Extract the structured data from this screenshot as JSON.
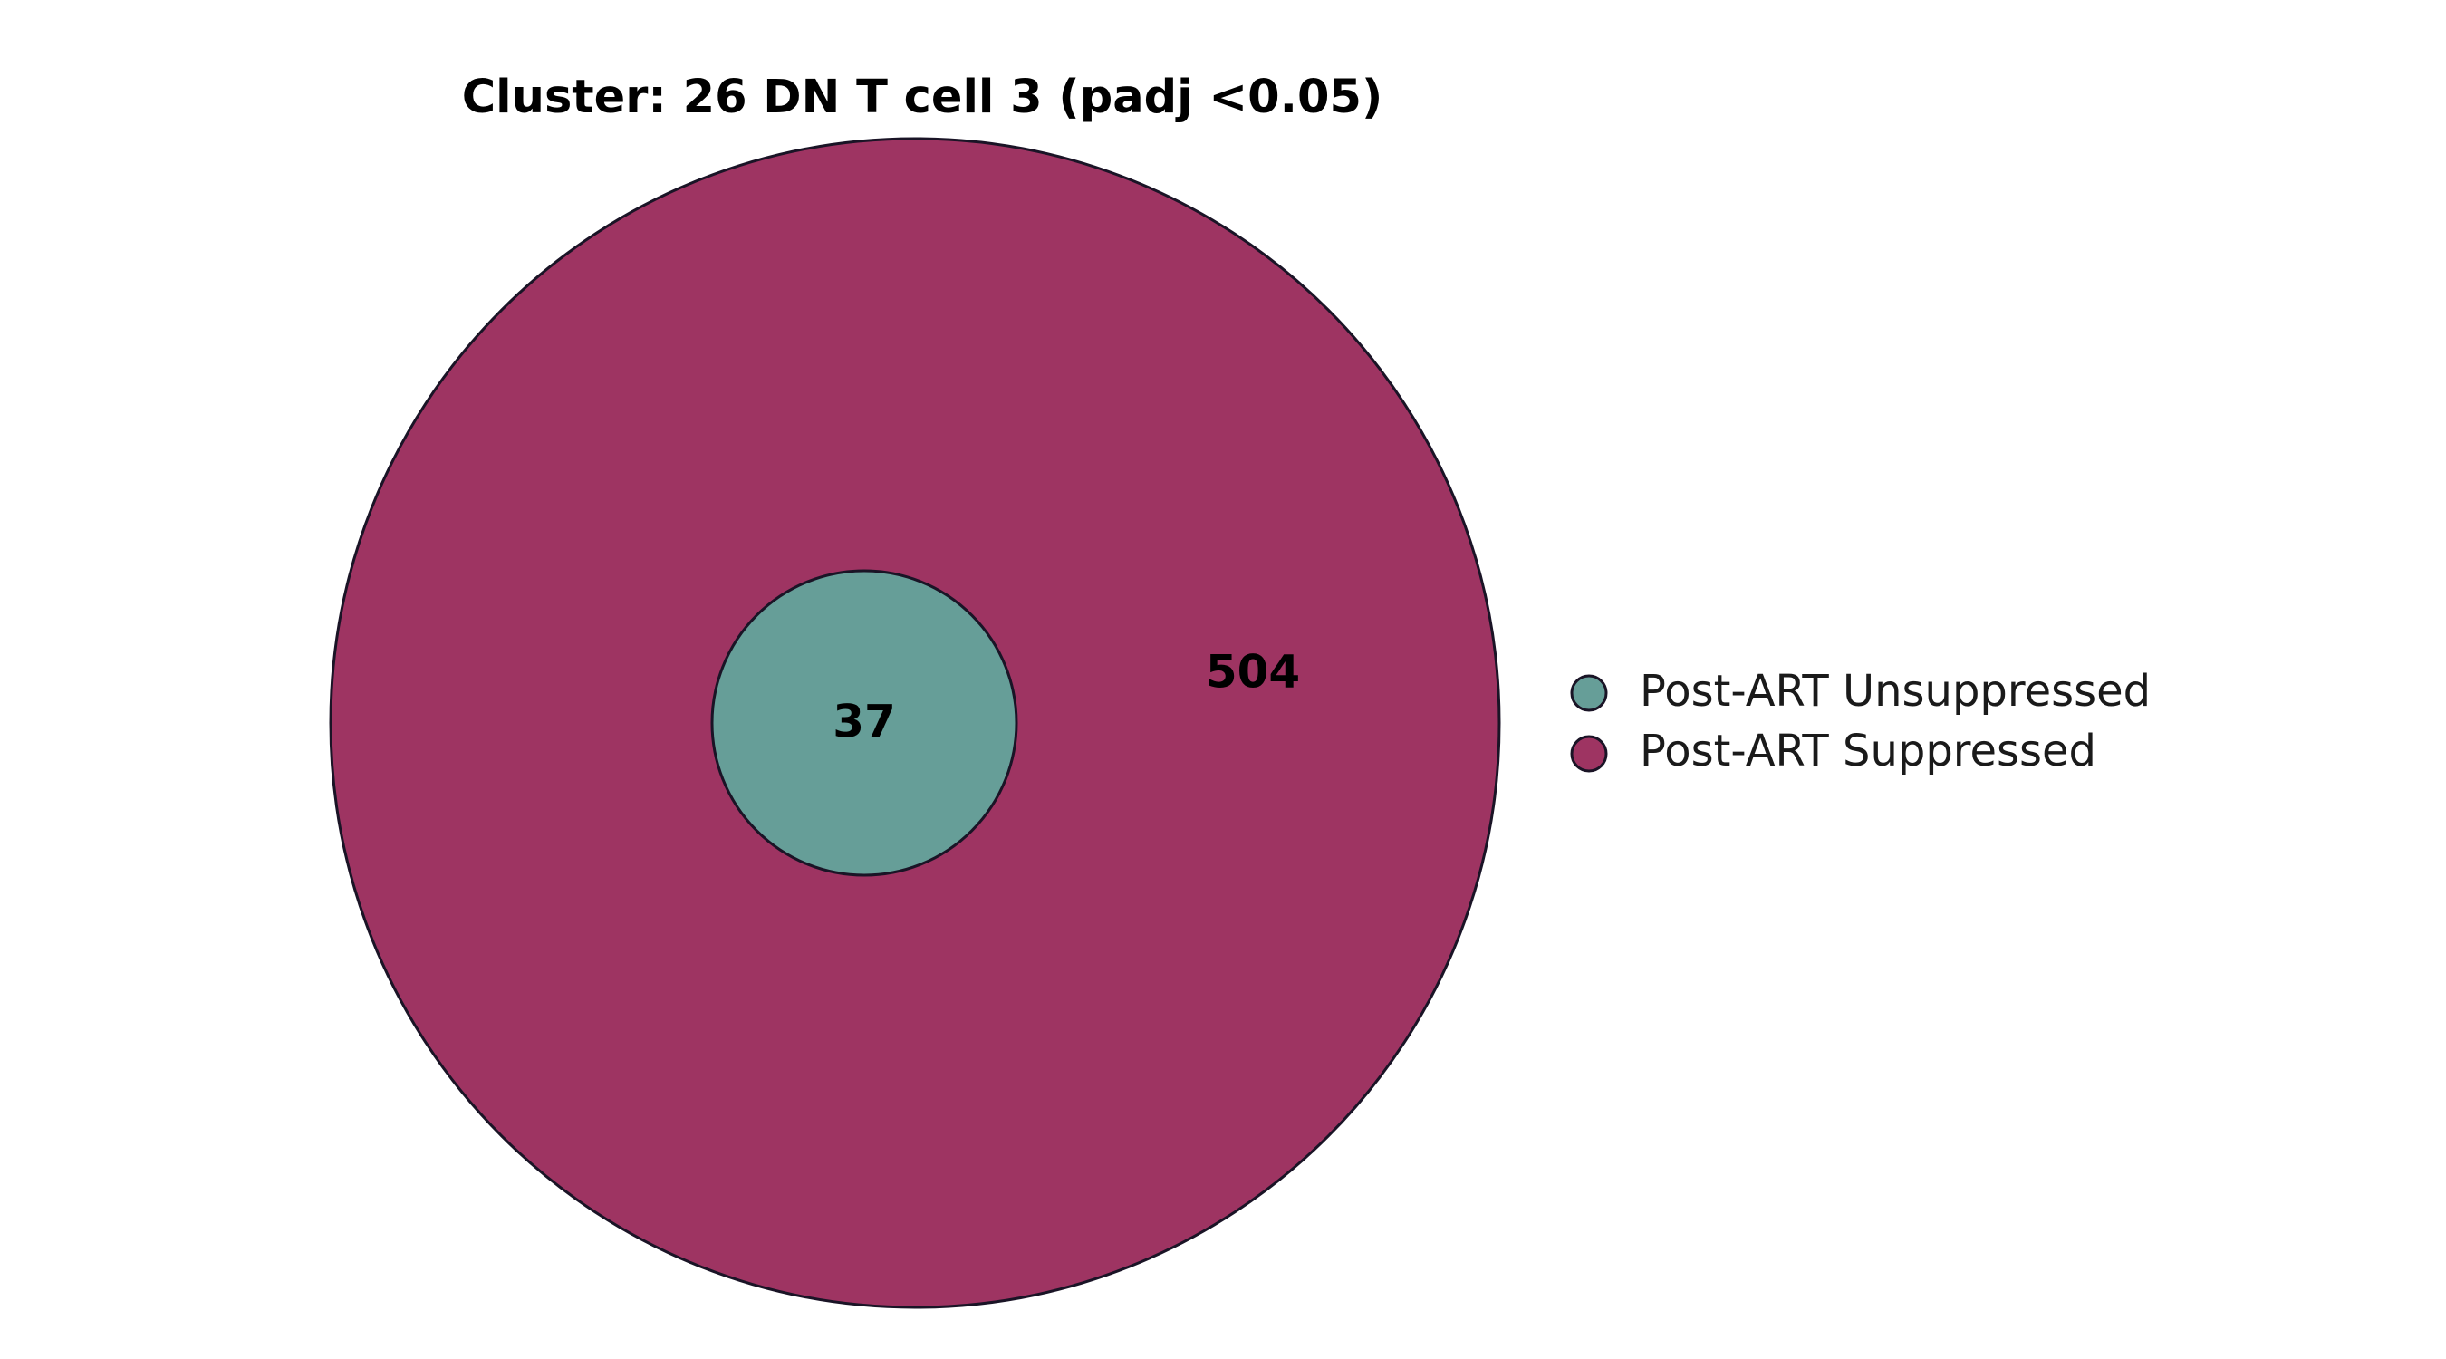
{
  "chart_data": {
    "type": "venn",
    "title": "Cluster: 26 DN T cell 3  (padj <0.05)",
    "sets": [
      {
        "name": "Post-ART Unsuppressed",
        "color": "#669e98",
        "size": 37
      },
      {
        "name": "Post-ART Suppressed",
        "color": "#9e3462",
        "size": 541
      }
    ],
    "regions": [
      {
        "sets": [
          "Post-ART Suppressed"
        ],
        "label": "504",
        "value": 504
      },
      {
        "sets": [
          "Post-ART Unsuppressed",
          "Post-ART Suppressed"
        ],
        "label": "37",
        "value": 37
      }
    ],
    "legend": {
      "placement": "right",
      "entries": [
        "Post-ART Unsuppressed",
        "Post-ART Suppressed"
      ]
    }
  }
}
